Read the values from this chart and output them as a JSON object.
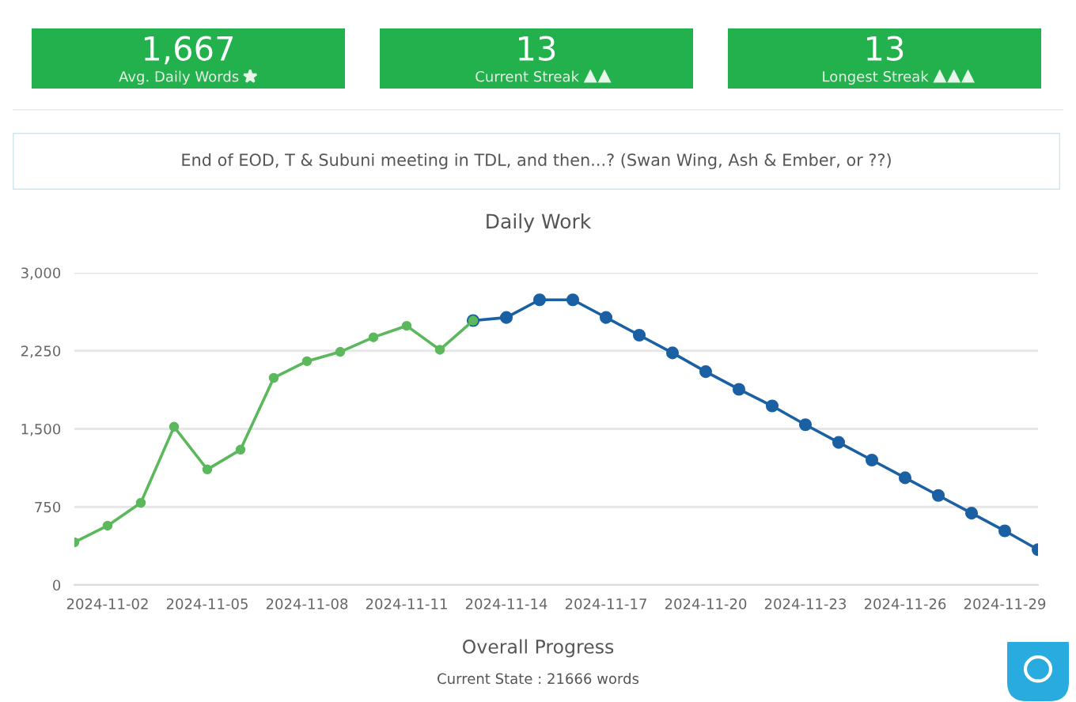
{
  "chart_data": [
    {
      "type": "other",
      "color": "#22b14c",
      "annotations": [
        "1,667",
        "Avg. Daily Words",
        "13",
        "Current Streak",
        "13",
        "Longest Streak"
      ]
    },
    {
      "type": "other",
      "title": "End of EOD, T & Subuni meeting in TDL, and then...? (Swan Wing, Ash & Ember, or ??)"
    },
    {
      "type": "line",
      "title": "Daily Work",
      "marker": "circle",
      "line_style": "solid",
      "grid": "y",
      "legend": false,
      "series": [
        {
          "color": "#5cb85c",
          "x": [
            "2024-11-01",
            "2024-11-02",
            "2024-11-03",
            "2024-11-04",
            "2024-11-05",
            "2024-11-06",
            "2024-11-07",
            "2024-11-08",
            "2024-11-09",
            "2024-11-10",
            "2024-11-11",
            "2024-11-12",
            "2024-11-13"
          ],
          "values": [
            410,
            570,
            790,
            1520,
            1110,
            1300,
            1990,
            2150,
            2240,
            2380,
            2490,
            2260,
            2540
          ]
        },
        {
          "color": "#1a60a3",
          "x": [
            "2024-11-13",
            "2024-11-14",
            "2024-11-15",
            "2024-11-16",
            "2024-11-17",
            "2024-11-18",
            "2024-11-19",
            "2024-11-20",
            "2024-11-21",
            "2024-11-22",
            "2024-11-23",
            "2024-11-24",
            "2024-11-25",
            "2024-11-26",
            "2024-11-27",
            "2024-11-28",
            "2024-11-29",
            "2024-11-30"
          ],
          "values": [
            2540,
            2570,
            2740,
            2740,
            2570,
            2400,
            2230,
            2050,
            1880,
            1720,
            1540,
            1370,
            1200,
            1030,
            860,
            690,
            520,
            340
          ]
        }
      ],
      "xlim": [
        "2024-11-01",
        "2024-11-30"
      ],
      "xticks": [
        "2024-11-02",
        "2024-11-05",
        "2024-11-08",
        "2024-11-11",
        "2024-11-14",
        "2024-11-17",
        "2024-11-20",
        "2024-11-23",
        "2024-11-26",
        "2024-11-29"
      ],
      "ylim": [
        0,
        3000
      ],
      "yticks": [
        0,
        750,
        {
          "value": 1500,
          "label": "1,500"
        },
        {
          "value": 2250,
          "label": "2,250"
        },
        {
          "value": 3000,
          "label": "3,000"
        }
      ]
    },
    {
      "type": "other",
      "title": "Overall Progress",
      "subtitle": "Current State : 21666 words"
    }
  ]
}
